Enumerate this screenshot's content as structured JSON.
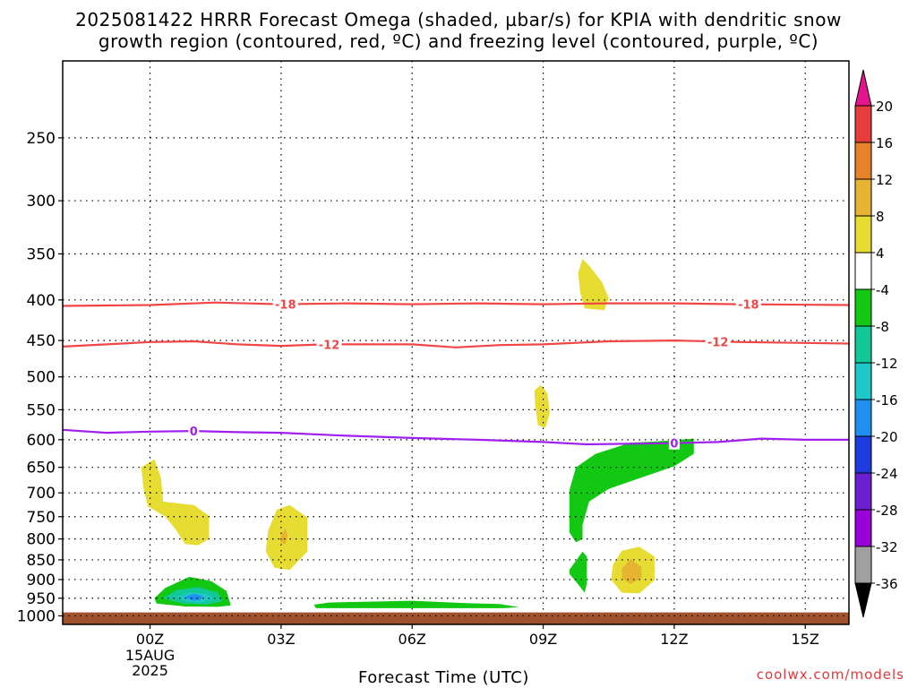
{
  "title_line1": "2025081422 HRRR Forecast Omega (shaded, µbar/s) for KPIA with dendritic snow",
  "title_line2": "growth region (contoured, red, ºC) and freezing level (contoured, purple, ºC)",
  "credit": "coolwx.com/models",
  "chart_data": {
    "type": "time-height cross section (filled contour)",
    "title": "2025081422 HRRR Forecast Omega (shaded, µbar/s) for KPIA with dendritic snow growth region (contoured, red, ºC) and freezing level (contoured, purple, ºC)",
    "xlabel": "Forecast Time (UTC)",
    "ylabel": "",
    "x_ticks": [
      {
        "label": "00Z",
        "hour": 0,
        "sub": [
          "15AUG",
          "2025"
        ]
      },
      {
        "label": "03Z",
        "hour": 3
      },
      {
        "label": "06Z",
        "hour": 6
      },
      {
        "label": "09Z",
        "hour": 9
      },
      {
        "label": "12Z",
        "hour": 12
      },
      {
        "label": "15Z",
        "hour": 15
      }
    ],
    "xlim_hours": [
      -2,
      16
    ],
    "y_axis": "pressure (hPa), inverted",
    "y_ticks": [
      250,
      300,
      350,
      400,
      450,
      500,
      550,
      600,
      650,
      700,
      750,
      800,
      850,
      900,
      950,
      1000
    ],
    "ylim": [
      200,
      1025
    ],
    "grid": true,
    "ground_level_hPa": 990,
    "ground_color": "#a0522d",
    "colorbar": {
      "levels": [
        -36,
        -32,
        -28,
        -24,
        -20,
        -16,
        -12,
        -8,
        -4,
        4,
        8,
        12,
        16,
        20
      ],
      "colors": [
        "#000000",
        "#a0a0a0",
        "#9a00d8",
        "#6a1fd0",
        "#1f3be0",
        "#2090f0",
        "#1fc8c8",
        "#12c896",
        "#12c812",
        "#ffffff",
        "#e6dc32",
        "#e6b432",
        "#e6822a",
        "#e63c3c",
        "#e6148c"
      ]
    },
    "contours": [
      {
        "name": "-18",
        "color": "#f04646",
        "label": "-18",
        "points": [
          [
            -2,
            407
          ],
          [
            0,
            406
          ],
          [
            1.5,
            403
          ],
          [
            3,
            405
          ],
          [
            4.5,
            404
          ],
          [
            6,
            405
          ],
          [
            7.5,
            404
          ],
          [
            9,
            405
          ],
          [
            10.5,
            404
          ],
          [
            12,
            404
          ],
          [
            13.5,
            405
          ],
          [
            16,
            406
          ]
        ],
        "label_hours": [
          3.1,
          13.7
        ]
      },
      {
        "name": "-12",
        "color": "#f04646",
        "label": "-12",
        "points": [
          [
            -2,
            458
          ],
          [
            -1,
            455
          ],
          [
            0,
            452
          ],
          [
            1,
            451
          ],
          [
            2,
            455
          ],
          [
            3,
            457
          ],
          [
            4,
            455
          ],
          [
            6,
            455
          ],
          [
            7,
            459
          ],
          [
            8,
            456
          ],
          [
            9,
            455
          ],
          [
            10.5,
            451
          ],
          [
            12,
            450
          ],
          [
            13.5,
            452
          ],
          [
            16,
            454
          ]
        ],
        "label_hours": [
          4.1,
          13.0
        ]
      },
      {
        "name": "0",
        "color": "#a020f0",
        "label": "0",
        "points": [
          [
            -2,
            583
          ],
          [
            -1,
            588
          ],
          [
            0,
            586
          ],
          [
            1,
            585
          ],
          [
            2,
            587
          ],
          [
            3,
            588
          ],
          [
            4.5,
            593
          ],
          [
            6,
            597
          ],
          [
            7.5,
            600
          ],
          [
            9,
            604
          ],
          [
            10,
            608
          ],
          [
            11,
            607
          ],
          [
            12,
            606
          ],
          [
            13,
            604
          ],
          [
            14,
            598
          ],
          [
            15,
            600
          ],
          [
            16,
            600
          ]
        ],
        "label_hours": [
          1.0,
          12.0
        ]
      }
    ],
    "shaded_regions": [
      {
        "value_range": [
          4,
          8
        ],
        "color": "#e6dc32",
        "points": [
          [
            -0.2,
            650
          ],
          [
            0.1,
            635
          ],
          [
            0.25,
            670
          ],
          [
            0.3,
            718
          ],
          [
            1.0,
            725
          ],
          [
            1.35,
            748
          ],
          [
            1.35,
            800
          ],
          [
            1.1,
            815
          ],
          [
            0.8,
            812
          ],
          [
            0.6,
            780
          ],
          [
            0.35,
            750
          ],
          [
            -0.05,
            728
          ],
          [
            -0.15,
            690
          ]
        ]
      },
      {
        "value_range": [
          4,
          8
        ],
        "color": "#e6dc32",
        "points": [
          [
            2.7,
            782
          ],
          [
            2.9,
            735
          ],
          [
            3.2,
            725
          ],
          [
            3.6,
            752
          ],
          [
            3.6,
            830
          ],
          [
            3.2,
            875
          ],
          [
            2.85,
            870
          ],
          [
            2.65,
            830
          ]
        ]
      },
      {
        "value_range": [
          8,
          12
        ],
        "color": "#e6b432",
        "points": [
          [
            3.0,
            790
          ],
          [
            3.1,
            775
          ],
          [
            3.15,
            795
          ],
          [
            3.1,
            812
          ],
          [
            3.0,
            810
          ]
        ]
      },
      {
        "value_range": [
          4,
          8
        ],
        "color": "#e6dc32",
        "points": [
          [
            9.8,
            370
          ],
          [
            9.9,
            355
          ],
          [
            10.05,
            362
          ],
          [
            10.35,
            380
          ],
          [
            10.5,
            398
          ],
          [
            10.4,
            412
          ],
          [
            9.95,
            410
          ],
          [
            9.85,
            392
          ]
        ]
      },
      {
        "value_range": [
          4,
          8
        ],
        "color": "#e6dc32",
        "points": [
          [
            8.8,
            520
          ],
          [
            8.95,
            512
          ],
          [
            9.1,
            525
          ],
          [
            9.15,
            555
          ],
          [
            9.05,
            580
          ],
          [
            8.88,
            575
          ],
          [
            8.82,
            545
          ]
        ]
      },
      {
        "value_range": [
          4,
          8
        ],
        "color": "#e6dc32",
        "points": [
          [
            10.6,
            862
          ],
          [
            10.8,
            828
          ],
          [
            11.2,
            818
          ],
          [
            11.55,
            842
          ],
          [
            11.55,
            902
          ],
          [
            11.2,
            937
          ],
          [
            10.8,
            935
          ],
          [
            10.55,
            900
          ]
        ]
      },
      {
        "value_range": [
          8,
          12
        ],
        "color": "#e6b432",
        "points": [
          [
            10.8,
            872
          ],
          [
            11.0,
            848
          ],
          [
            11.25,
            868
          ],
          [
            11.25,
            895
          ],
          [
            11.0,
            912
          ],
          [
            10.8,
            895
          ]
        ]
      },
      {
        "value_range": [
          -8,
          -4
        ],
        "color": "#12c812",
        "points": [
          [
            9.6,
            695
          ],
          [
            9.75,
            650
          ],
          [
            10.2,
            625
          ],
          [
            11,
            605
          ],
          [
            11.6,
            603
          ],
          [
            12.45,
            598
          ],
          [
            12.45,
            625
          ],
          [
            12.0,
            648
          ],
          [
            11.3,
            668
          ],
          [
            10.5,
            692
          ],
          [
            10.05,
            718
          ],
          [
            9.9,
            768
          ],
          [
            9.9,
            800
          ],
          [
            9.75,
            808
          ],
          [
            9.6,
            785
          ]
        ]
      },
      {
        "value_range": [
          -8,
          -4
        ],
        "color": "#12c812",
        "points": [
          [
            9.6,
            875
          ],
          [
            9.9,
            830
          ],
          [
            10.0,
            842
          ],
          [
            10.0,
            910
          ],
          [
            9.95,
            935
          ],
          [
            9.75,
            905
          ],
          [
            9.6,
            885
          ]
        ]
      },
      {
        "value_range": [
          -8,
          -4
        ],
        "color": "#12c812",
        "points": [
          [
            3.75,
            968
          ],
          [
            4.1,
            962
          ],
          [
            6.0,
            957
          ],
          [
            7.3,
            964
          ],
          [
            8.0,
            966
          ],
          [
            8.45,
            975
          ],
          [
            8.1,
            978
          ],
          [
            6.0,
            978
          ],
          [
            3.8,
            978
          ]
        ]
      },
      {
        "value_range": [
          -8,
          -4
        ],
        "color": "#12c812",
        "points": [
          [
            0.1,
            950
          ],
          [
            0.35,
            922
          ],
          [
            0.9,
            893
          ],
          [
            1.4,
            904
          ],
          [
            1.75,
            930
          ],
          [
            1.85,
            970
          ],
          [
            1.55,
            974
          ],
          [
            0.8,
            973
          ],
          [
            0.15,
            965
          ]
        ]
      },
      {
        "value_range": [
          -12,
          -8
        ],
        "color": "#12c896",
        "points": [
          [
            0.3,
            950
          ],
          [
            0.6,
            928
          ],
          [
            1.1,
            920
          ],
          [
            1.55,
            935
          ],
          [
            1.65,
            958
          ],
          [
            1.3,
            968
          ],
          [
            0.75,
            965
          ]
        ]
      },
      {
        "value_range": [
          -16,
          -12
        ],
        "color": "#1fc8c8",
        "points": [
          [
            0.6,
            947
          ],
          [
            0.9,
            934
          ],
          [
            1.3,
            938
          ],
          [
            1.45,
            950
          ],
          [
            1.2,
            962
          ],
          [
            0.85,
            960
          ]
        ]
      },
      {
        "value_range": [
          -20,
          -16
        ],
        "color": "#2090f0",
        "points": [
          [
            0.8,
            947
          ],
          [
            1.0,
            938
          ],
          [
            1.2,
            944
          ],
          [
            1.15,
            955
          ],
          [
            0.95,
            956
          ]
        ]
      }
    ]
  }
}
